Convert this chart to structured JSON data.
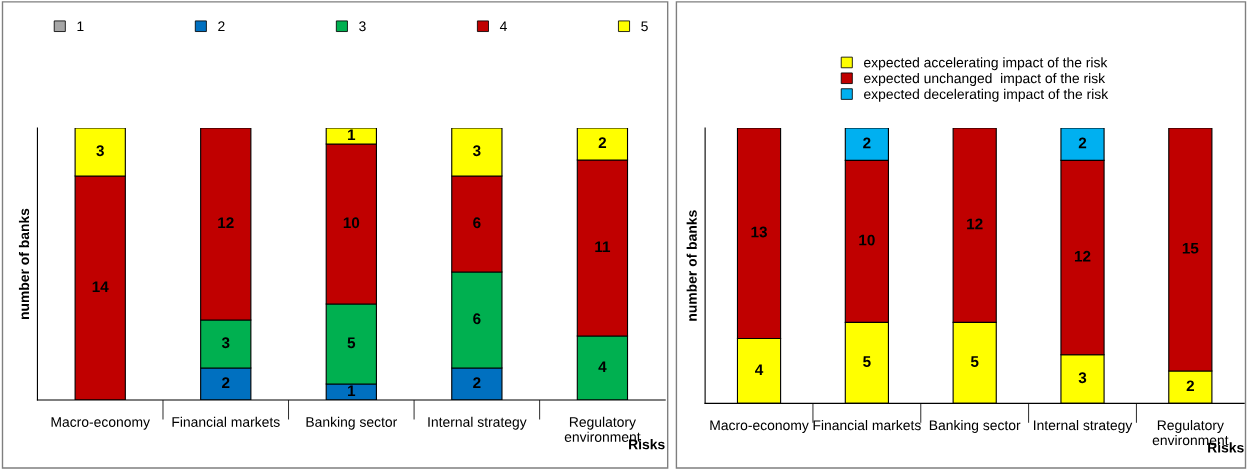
{
  "chart_data": [
    {
      "type": "bar",
      "stacked": true,
      "ylabel": "number of banks",
      "xlabel": "Risks",
      "categories": [
        "Macro-economy",
        "Financial markets",
        "Banking sector",
        "Internal strategy",
        "Regulatory\nenvironment"
      ],
      "series": [
        {
          "name": "1",
          "color": "#a6a6a6",
          "values": [
            null,
            null,
            null,
            null,
            null
          ]
        },
        {
          "name": "2",
          "color": "#0070c0",
          "values": [
            null,
            2,
            1,
            2,
            null
          ]
        },
        {
          "name": "3",
          "color": "#00b050",
          "values": [
            null,
            3,
            5,
            6,
            4
          ]
        },
        {
          "name": "4",
          "color": "#c00000",
          "values": [
            14,
            12,
            10,
            6,
            11
          ]
        },
        {
          "name": "5",
          "color": "#ffff00",
          "values": [
            3,
            null,
            1,
            3,
            2
          ]
        }
      ],
      "data_labels": true,
      "legend": "top",
      "tick_labels": "x",
      "grid": false
    },
    {
      "type": "bar",
      "stacked": true,
      "ylabel": "number of banks",
      "xlabel": "Risks",
      "categories": [
        "Macro-economy",
        "Financial markets",
        "Banking sector",
        "Internal strategy",
        "Regulatory\nenvironment"
      ],
      "series": [
        {
          "name": "expected accelerating impact of the risk",
          "color": "#ffff00",
          "values": [
            4,
            5,
            5,
            3,
            2
          ]
        },
        {
          "name": "expected unchanged  impact of the risk",
          "color": "#c00000",
          "values": [
            13,
            10,
            12,
            12,
            15
          ]
        },
        {
          "name": "expected decelerating impact of the risk",
          "color": "#00b0f0",
          "values": [
            null,
            2,
            null,
            2,
            null
          ]
        }
      ],
      "data_labels": true,
      "legend": "top",
      "tick_labels": "x",
      "grid": false
    }
  ]
}
